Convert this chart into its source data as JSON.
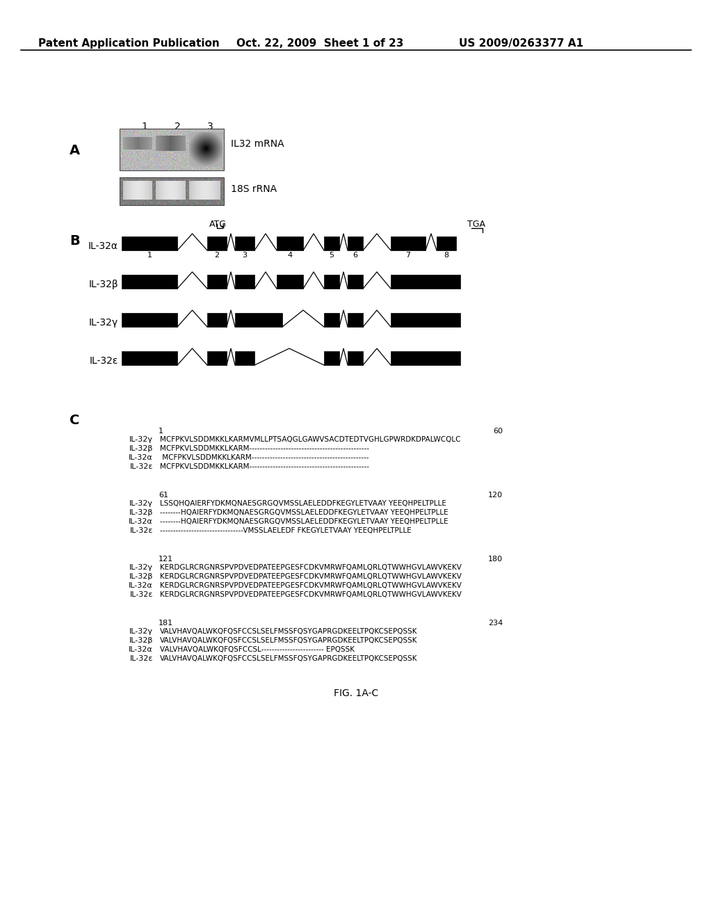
{
  "header_left": "Patent Application Publication",
  "header_mid": "Oct. 22, 2009  Sheet 1 of 23",
  "header_right": "US 2009/0263377 A1",
  "blot_label_top": "IL32 mRNA",
  "blot_label_bot": "18S rRNA",
  "lane_labels": [
    "1",
    "2",
    "3"
  ],
  "atg_label": "ATG",
  "tga_label": "TGA",
  "fig_label": "FIG. 1A-C",
  "bg_color": "#ffffff",
  "text_color": "#000000"
}
